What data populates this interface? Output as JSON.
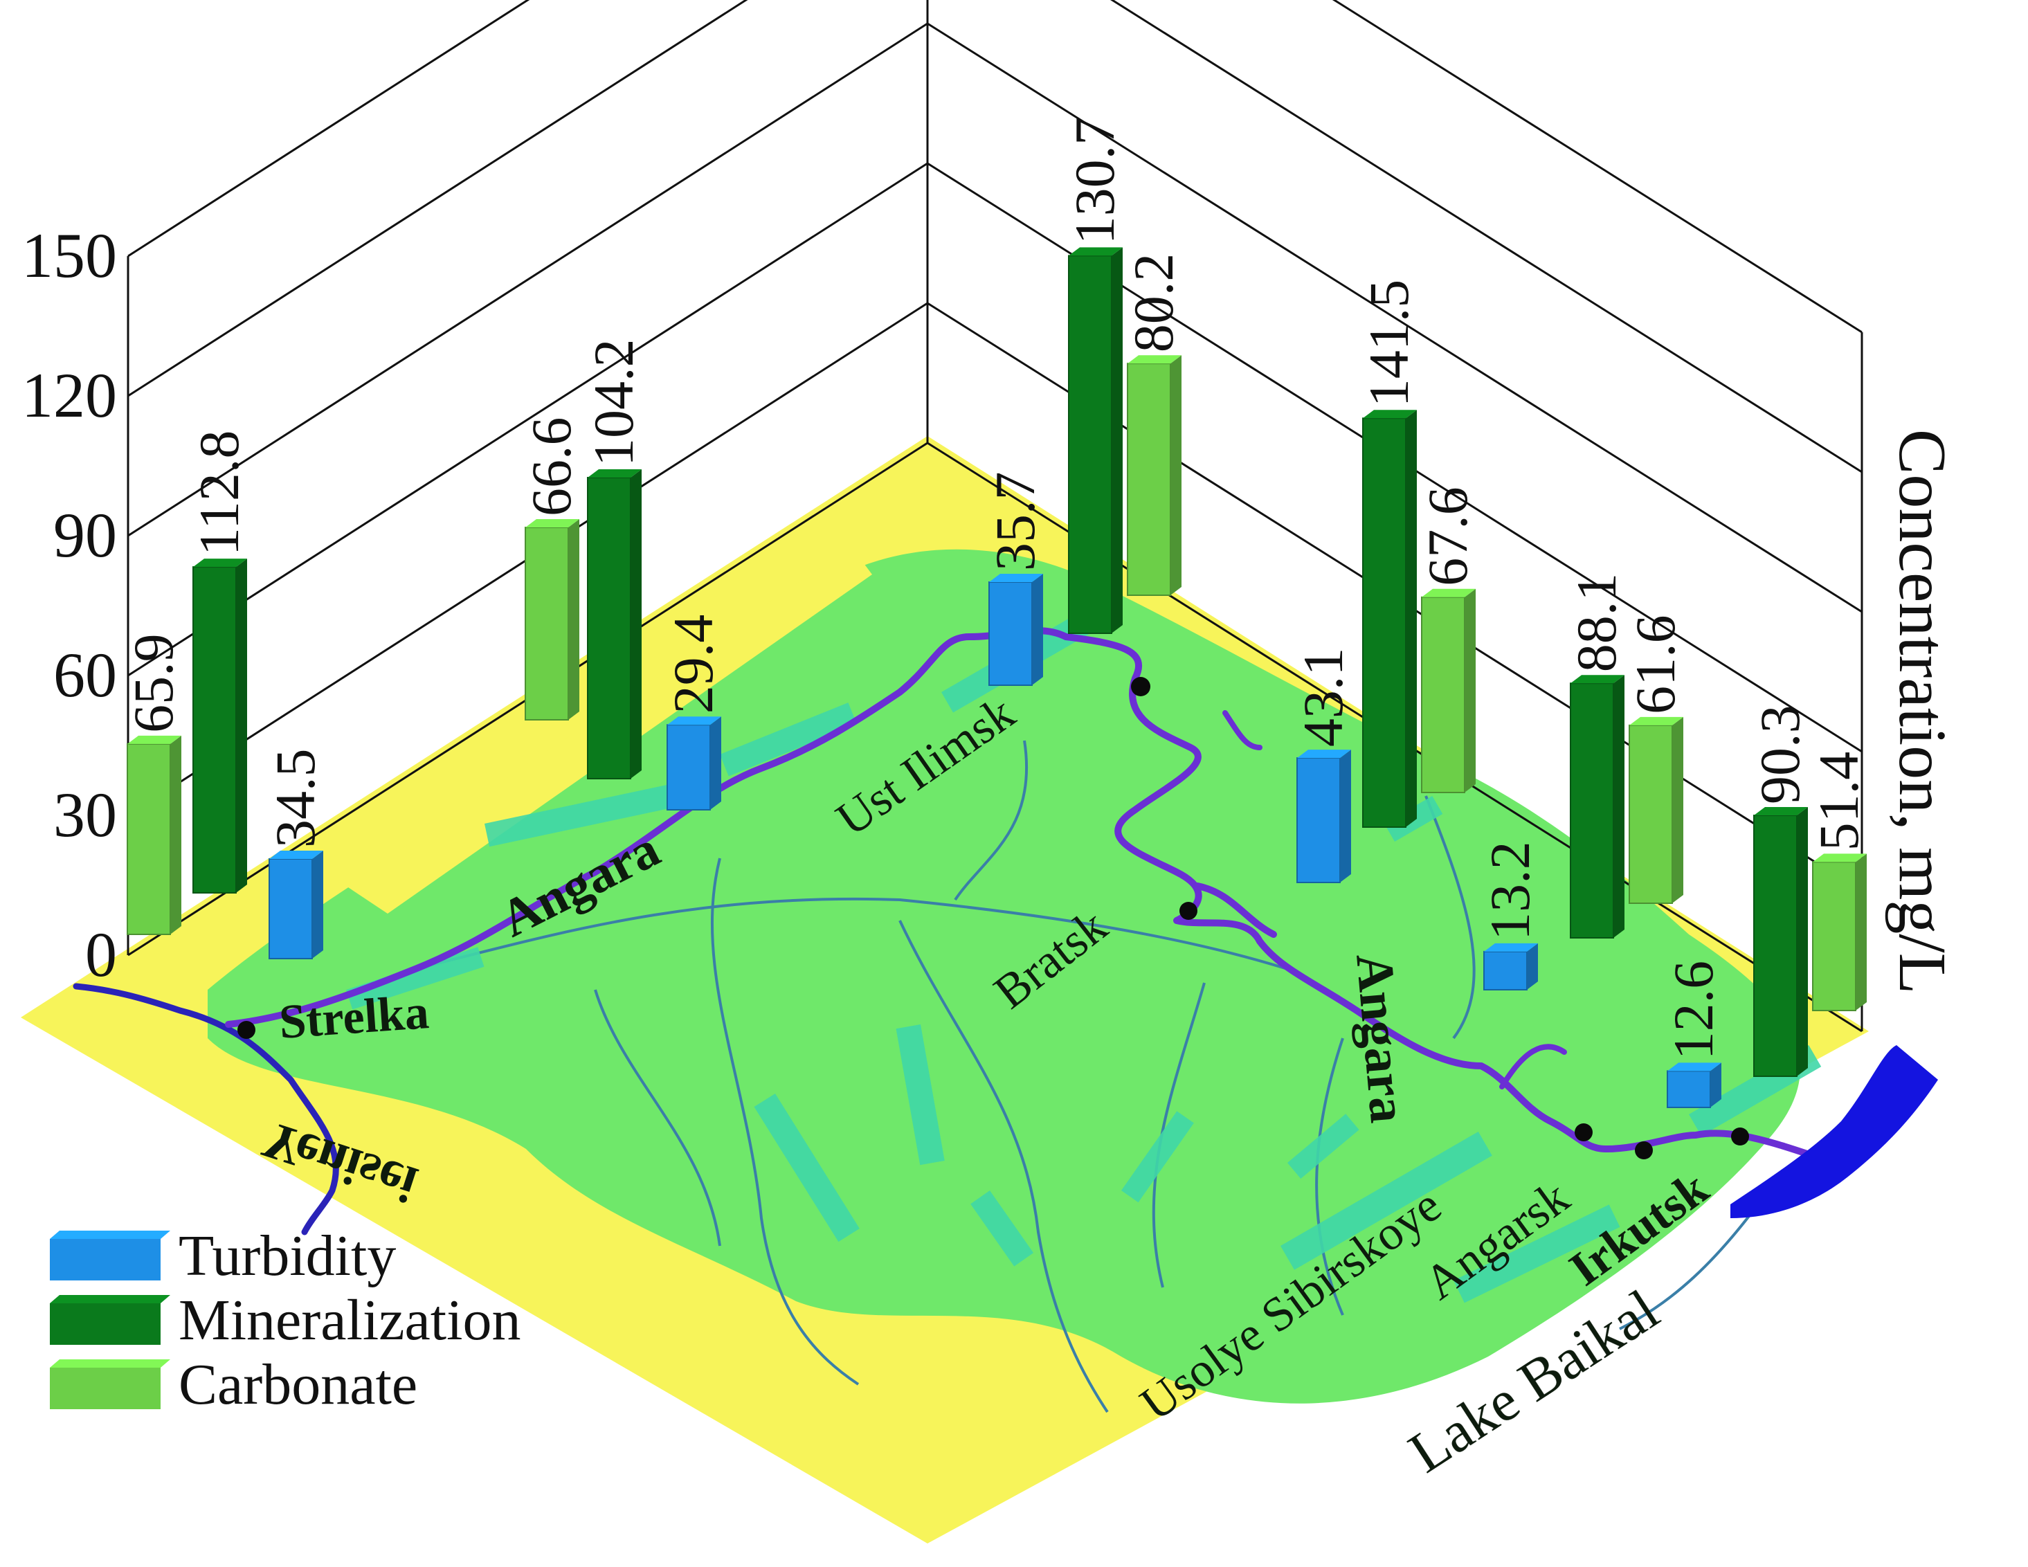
{
  "chart_data": {
    "type": "bar",
    "title": "",
    "ylabel": "Concentration, mg/L",
    "ylim": [
      0,
      150
    ],
    "yticks": [
      "0",
      "30",
      "60",
      "90",
      "120",
      "150"
    ],
    "categories": [
      "Strelka",
      "Angara",
      "Ust Ilimsk",
      "Bratsk",
      "Usolye Sibirskoye",
      "Irkutsk"
    ],
    "series": [
      {
        "name": "Turbidity",
        "color": "#1e8fe6",
        "values": [
          34.5,
          29.4,
          35.7,
          43.1,
          13.2,
          12.6
        ],
        "labels": [
          "34.5",
          "29.4",
          "35.7",
          "43.1",
          "13.2",
          "12.6"
        ]
      },
      {
        "name": "Mineralization",
        "color": "#0a7a1c",
        "values": [
          112.8,
          104.2,
          130.7,
          141.5,
          88.1,
          90.3
        ],
        "labels": [
          "112.8",
          "104.2",
          "130.7",
          "141.5",
          "88.1",
          "90.3"
        ]
      },
      {
        "name": "Carbonate",
        "color": "#6ccf48",
        "values": [
          65.9,
          66.6,
          80.2,
          67.6,
          61.6,
          51.4
        ],
        "labels": [
          "65.9",
          "66.6",
          "80.2",
          "67.6",
          "61.6",
          "51.4"
        ]
      }
    ],
    "legend_position": "bottom-left",
    "grid": true
  },
  "map": {
    "places": {
      "strelka": "Strelka",
      "ust_ilimsk": "Ust Ilimsk",
      "bratsk": "Bratsk",
      "usolye": "Usolye Sibirskoye",
      "angarsk": "Angarsk",
      "irkutsk": "Irkutsk",
      "lake_baikal": "Lake Baikal"
    },
    "rivers": {
      "angara_main": "Angara",
      "angara_upper": "Angara",
      "yenisei": "Yenisei"
    },
    "colors": {
      "land": "#f7f45a",
      "basin": "#6fe86a",
      "river": "#6a2fd4",
      "lake": "#1414e0",
      "reservoir": "#40d7a8"
    }
  }
}
